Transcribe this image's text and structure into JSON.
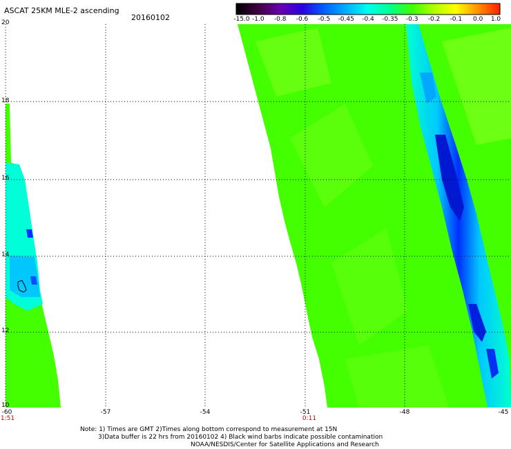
{
  "header": {
    "title": "ASCAT 25KM MLE-2 ascending",
    "date": "20160102"
  },
  "colorbar": {
    "labels": [
      "-15.0",
      "-1.0",
      "-0.8",
      "-0.6",
      "-0.5",
      "-0.45",
      "-0.4",
      "-0.35",
      "-0.3",
      "-0.2",
      "-0.1",
      "0.0",
      "1.0"
    ],
    "colors": [
      "#000000",
      "#400040",
      "#6a00b0",
      "#2a00e0",
      "#0060ff",
      "#00b0ff",
      "#00ffee",
      "#00ff90",
      "#40ff00",
      "#b0ff00",
      "#ffff00",
      "#ff9000",
      "#ff2000"
    ]
  },
  "axes": {
    "y_labels": [
      "20",
      "18",
      "16",
      "14",
      "12",
      "10"
    ],
    "x_labels": [
      "-60",
      "-57",
      "-54",
      "-51",
      "-48",
      "-45"
    ],
    "time_labels": [
      "1:51",
      "0:11"
    ]
  },
  "notes": {
    "line1": "Note: 1) Times are GMT 2)Times along bottom correspond to measurement at 15N",
    "line2": "3)Data buffer is 22 hrs from 20160102 4) Black wind barbs indicate possible contamination",
    "line3": "NOAA/NESDIS/Center for Satellite Applications and Research"
  },
  "colors": {
    "green": "#44ff00",
    "light_green": "#88ff22",
    "cyan": "#00ffee",
    "blue": "#0040ff",
    "dark_blue": "#0010c0"
  }
}
